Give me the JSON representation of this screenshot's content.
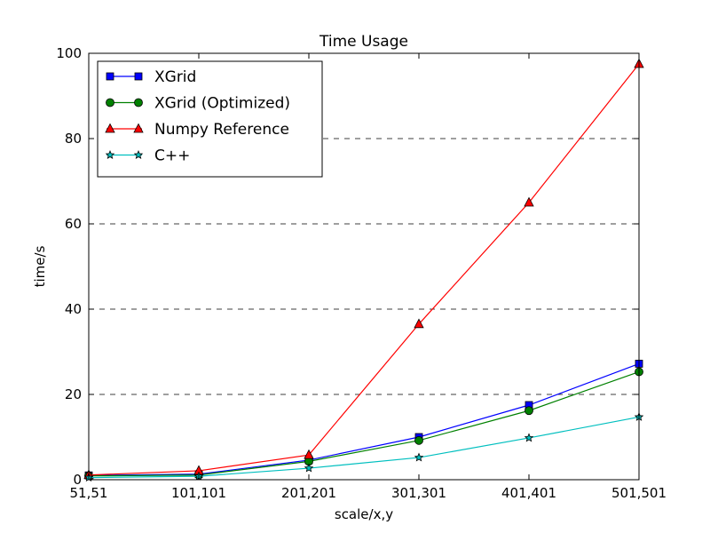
{
  "chart_data": {
    "type": "line",
    "title": "Time Usage",
    "xlabel": "scale/x,y",
    "ylabel": "time/s",
    "categories": [
      "51,51",
      "101,101",
      "201,201",
      "301,301",
      "401,401",
      "501,501"
    ],
    "ylim": [
      0,
      100
    ],
    "yticks": [
      "0",
      "20",
      "40",
      "60",
      "80",
      "100"
    ],
    "grid": "horizontal dashed",
    "legend_position": "top-left",
    "series": [
      {
        "name": "XGrid",
        "values": [
          1.0,
          1.3,
          4.6,
          10.0,
          17.5,
          27.2
        ],
        "color": "#0000ff",
        "marker": "square"
      },
      {
        "name": "XGrid (Optimized)",
        "values": [
          0.9,
          1.1,
          4.3,
          9.2,
          16.2,
          25.3
        ],
        "color": "#008000",
        "marker": "circle"
      },
      {
        "name": "Numpy Reference",
        "values": [
          1.1,
          2.1,
          5.8,
          36.5,
          65.0,
          97.5
        ],
        "color": "#ff0000",
        "marker": "triangle"
      },
      {
        "name": "C++",
        "values": [
          0.5,
          0.8,
          2.7,
          5.2,
          9.8,
          14.7
        ],
        "color": "#00bfbf",
        "marker": "star"
      }
    ]
  }
}
